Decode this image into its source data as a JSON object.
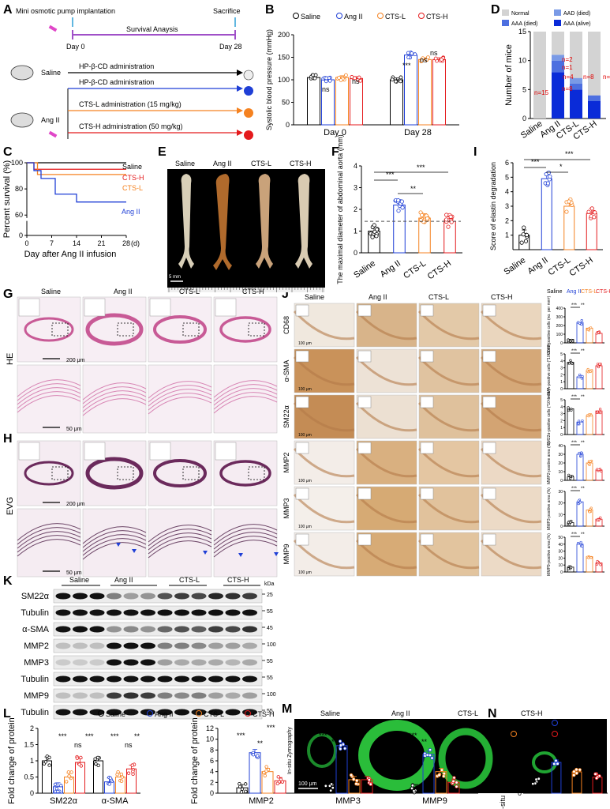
{
  "panel_letters": [
    "A",
    "B",
    "C",
    "D",
    "E",
    "F",
    "G",
    "H",
    "I",
    "J",
    "K",
    "L",
    "M",
    "N"
  ],
  "colors": {
    "saline": "#000000",
    "angii": "#1f3fd6",
    "ctsl": "#f58220",
    "ctsh": "#e41a1c"
  },
  "groups": [
    "Saline",
    "Ang II",
    "CTS-L",
    "CTS-H"
  ],
  "panelA": {
    "title_left": "Mini osmotic pump implantation",
    "title_right": "Sacrifice",
    "timeline_label": "Survival Anaysis",
    "day0": "Day 0",
    "day28": "Day 28",
    "saline": "Saline",
    "angii": "Ang II",
    "rows": [
      "HP-β-CD administration",
      "HP-β-CD administration",
      "CTS-L administration (15 mg/kg)",
      "CTS-H administration (50 mg/kg)"
    ]
  },
  "panelB": {
    "ylabel": "Systolic blood pressure (mmHg)",
    "ns": "ns",
    "sig": "***"
  },
  "panelC": {
    "ylabel": "Percent survival (%)",
    "xlabel": "Day after Ang II infusion",
    "unit": "(d)"
  },
  "panelD": {
    "ylabel": "Number of mice",
    "legend": [
      "Normal",
      "AAD (died)",
      "AAA (died)",
      "AAA (alive)"
    ],
    "counts": [
      "n=15",
      "n=2",
      "n=1",
      "n=4",
      "n=8",
      "n=8",
      "n=11",
      "n=3",
      "n=3",
      "n=2",
      "n=1",
      "n=2"
    ]
  },
  "panelE": {
    "scale": "5 mm"
  },
  "panelF": {
    "ylabel": "The maximal diameter of abdominal aorta (mm)",
    "sig": [
      "***",
      "**",
      "***"
    ]
  },
  "panelG": {
    "side": "HE",
    "scale_top": "200 μm",
    "scale_bottom": "50 μm"
  },
  "panelH": {
    "side": "EVG",
    "scale_top": "200 μm",
    "scale_bottom": "50 μm"
  },
  "panelI": {
    "ylabel": "Score of elastin degradation",
    "sig": [
      "***",
      "*",
      "***"
    ]
  },
  "panelJ": {
    "scale": "100 μm",
    "markers": [
      "CD68",
      "α-SMA",
      "SM22α",
      "MMP2",
      "MMP3",
      "MMP9"
    ],
    "ylabels": [
      "CD68-positive cells (no. per mm²)",
      "α-SMA-positive cells (*10²/mm²)",
      "SM22α-positive cells (*10²/mm²)",
      "MMP2-positive area (%)",
      "MMP3-positive area (%)",
      "MMP9-positive area (%)"
    ],
    "sig": [
      "***",
      "**",
      "***"
    ]
  },
  "panelK": {
    "kda": "kDa",
    "bands": [
      {
        "name": "SM22α",
        "kda": "25"
      },
      {
        "name": "Tubulin",
        "kda": "55"
      },
      {
        "name": "α-SMA",
        "kda": "45"
      },
      {
        "name": "MMP2",
        "kda": "100"
      },
      {
        "name": "MMP3",
        "kda": "55"
      },
      {
        "name": "Tubulin",
        "kda": "55"
      },
      {
        "name": "MMP9",
        "kda": "100"
      },
      {
        "name": "Tubulin",
        "kda": "55"
      }
    ]
  },
  "panelM": {
    "side": "In-situ Zymography",
    "scale": "100 μm"
  },
  "panelL": {
    "ylabel": "Fold change of protein",
    "left_categories": [
      "SM22α",
      "α-SMA"
    ],
    "right_categories": [
      "MMP2",
      "MMP3",
      "MMP9"
    ],
    "ns": "ns"
  },
  "panelN": {
    "ylabel": "In-situ MMP activity area (%)"
  },
  "chart_data": [
    {
      "panel": "B",
      "type": "bar",
      "categories": [
        "Day 0",
        "Day 28"
      ],
      "ylabel": "Systolic blood pressure (mmHg)",
      "ylim": [
        0,
        200
      ],
      "yticks": [
        0,
        50,
        100,
        150,
        200
      ],
      "series": [
        {
          "name": "Saline",
          "values": [
            105,
            100
          ]
        },
        {
          "name": "Ang II",
          "values": [
            100,
            155
          ]
        },
        {
          "name": "CTS-L",
          "values": [
            105,
            145
          ]
        },
        {
          "name": "CTS-H",
          "values": [
            103,
            145
          ]
        }
      ]
    },
    {
      "panel": "C",
      "type": "line",
      "xlabel": "Day after Ang II infusion",
      "ylabel": "Percent survival (%)",
      "xticks": [
        0,
        7,
        14,
        21,
        28
      ],
      "yticks": [
        0,
        60,
        80,
        100
      ],
      "series": [
        {
          "name": "Saline",
          "x": [
            0,
            28
          ],
          "y": [
            100,
            100
          ]
        },
        {
          "name": "CTS-H",
          "x": [
            0,
            2,
            28
          ],
          "y": [
            100,
            95,
            95
          ]
        },
        {
          "name": "CTS-L",
          "x": [
            0,
            3,
            28
          ],
          "y": [
            100,
            91,
            91
          ]
        },
        {
          "name": "Ang II",
          "x": [
            0,
            2,
            4,
            8,
            14,
            28
          ],
          "y": [
            100,
            94,
            88,
            76,
            70,
            70
          ]
        }
      ]
    },
    {
      "panel": "D",
      "type": "bar",
      "categories": [
        "Saline",
        "Ang II",
        "CTS-L",
        "CTS-H"
      ],
      "ylabel": "Number of mice",
      "ylim": [
        0,
        15
      ],
      "yticks": [
        0,
        5,
        10,
        15
      ],
      "series": [
        {
          "name": "AAA (alive)",
          "values": [
            0,
            8,
            5,
            3
          ]
        },
        {
          "name": "AAA (died)",
          "values": [
            0,
            2,
            1,
            1
          ]
        },
        {
          "name": "AAD (died)",
          "values": [
            0,
            1,
            1,
            0
          ]
        },
        {
          "name": "Normal",
          "values": [
            15,
            4,
            8,
            11
          ]
        }
      ]
    },
    {
      "panel": "F",
      "type": "bar",
      "categories": [
        "Saline",
        "Ang II",
        "CTS-L",
        "CTS-H"
      ],
      "ylabel": "The maximal diameter of abdominal aorta (mm)",
      "ylim": [
        0,
        4
      ],
      "yticks": [
        0,
        1,
        2,
        3,
        4
      ],
      "values": [
        1.0,
        2.2,
        1.6,
        1.45
      ]
    },
    {
      "panel": "I",
      "type": "bar",
      "categories": [
        "Saline",
        "Ang II",
        "CTS-L",
        "CTS-H"
      ],
      "ylabel": "Score of elastin degradation",
      "ylim": [
        0,
        6
      ],
      "yticks": [
        1,
        2,
        3,
        4,
        5,
        6
      ],
      "values": [
        1.0,
        4.9,
        3.0,
        2.5
      ]
    },
    {
      "panel": "J",
      "type": "bar",
      "categories": [
        "Saline",
        "Ang II",
        "CTS-L",
        "CTS-H"
      ],
      "series": [
        {
          "name": "CD68",
          "ylim": [
            0,
            400
          ],
          "yticks": [
            0,
            100,
            200,
            300,
            400
          ],
          "values": [
            40,
            235,
            170,
            110
          ]
        },
        {
          "name": "α-SMA",
          "ylim": [
            0,
            5
          ],
          "yticks": [
            0,
            1,
            2,
            3,
            4,
            5
          ],
          "values": [
            3.8,
            1.7,
            2.6,
            3.3
          ]
        },
        {
          "name": "SM22α",
          "ylim": [
            0,
            5
          ],
          "yticks": [
            0,
            1,
            2,
            3,
            4,
            5
          ],
          "values": [
            3.7,
            1.8,
            2.7,
            3.4
          ]
        },
        {
          "name": "MMP2",
          "ylim": [
            0,
            40
          ],
          "yticks": [
            0,
            10,
            20,
            30,
            40
          ],
          "values": [
            4,
            30,
            20,
            12
          ]
        },
        {
          "name": "MMP3",
          "ylim": [
            0,
            30
          ],
          "yticks": [
            0,
            10,
            20,
            30
          ],
          "values": [
            3,
            21,
            14,
            6
          ]
        },
        {
          "name": "MMP9",
          "ylim": [
            0,
            50
          ],
          "yticks": [
            0,
            10,
            20,
            30,
            40,
            50
          ],
          "values": [
            7,
            40,
            22,
            13
          ]
        }
      ]
    },
    {
      "panel": "L-left",
      "type": "bar",
      "categories": [
        "SM22α",
        "α-SMA"
      ],
      "ylabel": "Fold change of protein",
      "ylim": [
        0,
        2.0
      ],
      "yticks": [
        0.0,
        0.5,
        1.0,
        1.5,
        2.0
      ],
      "series": [
        {
          "name": "Saline",
          "values": [
            1.0,
            1.0
          ]
        },
        {
          "name": "Ang II",
          "values": [
            0.2,
            0.35
          ]
        },
        {
          "name": "CTS-L",
          "values": [
            0.5,
            0.5
          ]
        },
        {
          "name": "CTS-H",
          "values": [
            0.95,
            0.75
          ]
        }
      ]
    },
    {
      "panel": "L-right",
      "type": "bar",
      "categories": [
        "MMP2",
        "MMP3",
        "MMP9"
      ],
      "ylabel": "Fold change of protein",
      "ylim": [
        0,
        12
      ],
      "yticks": [
        0,
        2,
        4,
        6,
        8,
        10,
        12
      ],
      "series": [
        {
          "name": "Saline",
          "values": [
            1.0,
            1.0,
            1.0
          ]
        },
        {
          "name": "Ang II",
          "values": [
            7.5,
            8.8,
            7.2
          ]
        },
        {
          "name": "CTS-L",
          "values": [
            4.0,
            2.5,
            4.0
          ]
        },
        {
          "name": "CTS-H",
          "values": [
            2.3,
            2.5,
            2.0
          ]
        }
      ]
    },
    {
      "panel": "N",
      "type": "bar",
      "categories": [
        "Saline",
        "Ang II",
        "CTS-L",
        "CTS-H"
      ],
      "ylabel": "In-situ MMP activity area (%)",
      "ylim": [
        0,
        4
      ],
      "yticks": [
        0,
        1,
        2,
        3,
        4
      ],
      "values": [
        1.0,
        2.6,
        1.8,
        1.35
      ]
    }
  ]
}
